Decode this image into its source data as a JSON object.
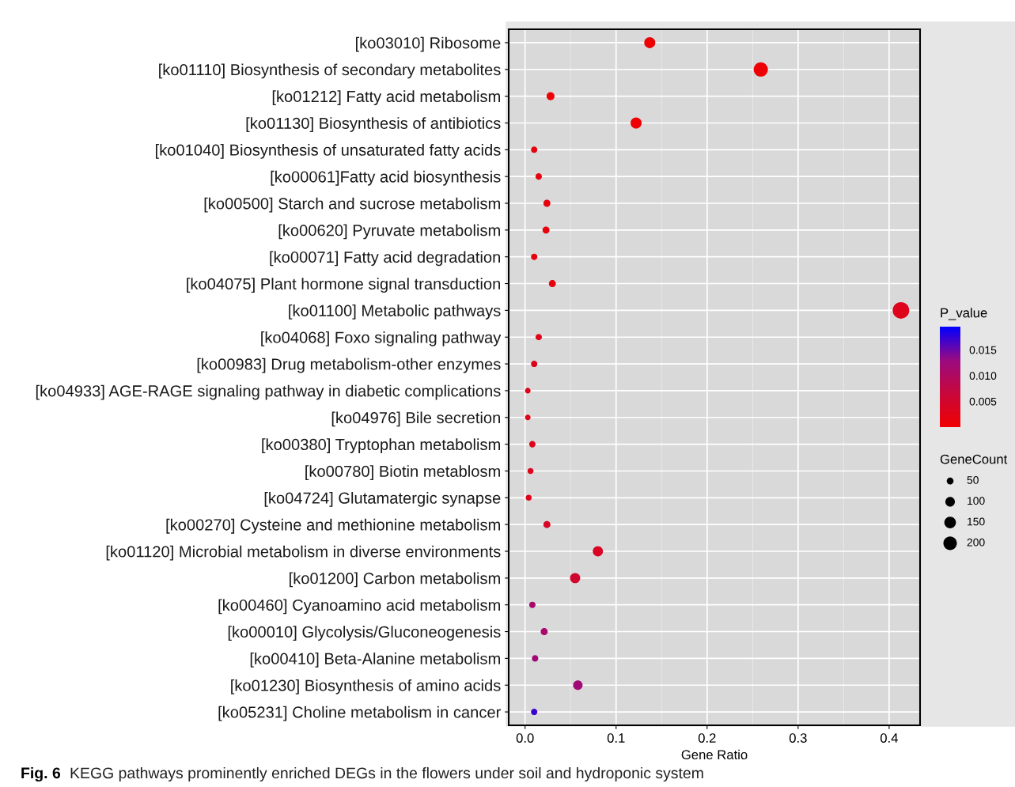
{
  "chart_data": {
    "type": "bubble",
    "categories": [
      "[ko03010] Ribosome",
      "[ko01110] Biosynthesis of secondary metabolites",
      "[ko01212] Fatty acid metabolism",
      "[ko01130] Biosynthesis of antibiotics",
      "[ko01040] Biosynthesis of unsaturated fatty acids",
      "[ko00061]Fatty acid biosynthesis",
      "[ko00500] Starch and sucrose metabolism",
      "[ko00620] Pyruvate metabolism",
      "[ko00071] Fatty acid degradation",
      "[ko04075] Plant hormone signal transduction",
      "[ko01100] Metabolic pathways",
      "[ko04068] Foxo signaling pathway",
      "[ko00983] Drug metabolism-other enzymes",
      "[ko04933] AGE-RAGE signaling pathway in diabetic complications",
      "[ko04976] Bile secretion",
      "[ko00380] Tryptophan metabolism",
      "[ko00780] Biotin metablosm",
      "[ko04724] Glutamatergic synapse",
      "[ko00270] Cysteine and methionine metabolism",
      "[ko01120] Microbial metabolism in diverse environments",
      "[ko01200] Carbon metabolism",
      "[ko00460] Cyanoamino acid metabolism",
      "[ko00010] Glycolysis/Gluconeogenesis",
      "[ko00410] Beta-Alanine metabolism",
      "[ko01230] Biosynthesis of amino acids",
      "[ko05231] Choline metabolism in cancer"
    ],
    "values": [
      0.137,
      0.259,
      0.028,
      0.122,
      0.01,
      0.015,
      0.024,
      0.023,
      0.01,
      0.03,
      0.413,
      0.015,
      0.01,
      0.003,
      0.003,
      0.008,
      0.006,
      0.004,
      0.024,
      0.08,
      0.055,
      0.008,
      0.021,
      0.011,
      0.058,
      0.01
    ],
    "sizes": [
      135,
      225,
      70,
      135,
      45,
      45,
      55,
      55,
      45,
      55,
      305,
      45,
      45,
      35,
      35,
      45,
      40,
      40,
      55,
      115,
      115,
      45,
      55,
      45,
      100,
      45
    ],
    "cvalues": [
      0.0005,
      0.0005,
      0.0005,
      0.0005,
      0.0015,
      0.0015,
      0.0015,
      0.0015,
      0.0015,
      0.0015,
      0.003,
      0.003,
      0.003,
      0.003,
      0.003,
      0.003,
      0.003,
      0.003,
      0.004,
      0.004,
      0.005,
      0.011,
      0.011,
      0.012,
      0.012,
      0.017
    ],
    "size_legend": [
      50,
      100,
      150,
      200
    ],
    "orientation": "horizontal",
    "clim": [
      0,
      0.0195
    ],
    "cticks": [
      {
        "value": 0.005,
        "label": "0.005"
      },
      {
        "value": 0.01,
        "label": "0.010"
      },
      {
        "value": 0.015,
        "label": "0.015"
      }
    ],
    "clabel": "P_value",
    "legend_title": "GeneCount",
    "xlabel": "Gene Ratio",
    "xlim": [
      -0.018,
      0.434
    ],
    "xticks": [
      {
        "value": 0,
        "label": "0.0"
      },
      0.1,
      0.2,
      0.3,
      0.4
    ],
    "grid": true,
    "marker": "circle",
    "annotations": [
      "Fig. 6",
      "KEGG pathways prominently enriched DEGs in the flowers under soil and hydroponic system"
    ]
  }
}
